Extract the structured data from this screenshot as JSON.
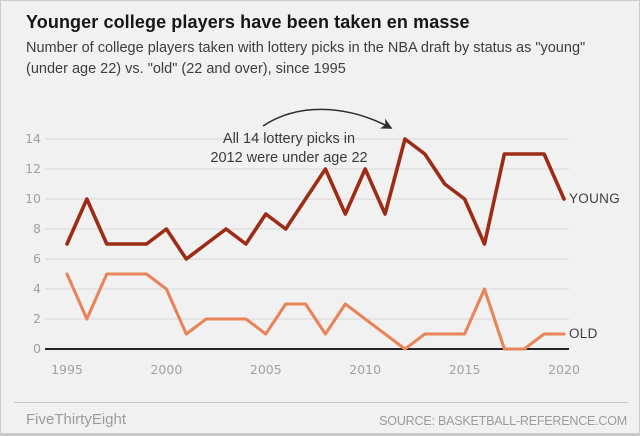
{
  "header": {
    "title": "Younger college players have been taken en masse",
    "subtitle": "Number of college players taken with lottery picks in the NBA draft by status as \"young\" (under age 22) vs. \"old\" (22 and over), since 1995"
  },
  "annotation": {
    "line1": "All 14 lottery picks in",
    "line2": "2012 were under age 22"
  },
  "chart_data": {
    "type": "line",
    "title": "Younger college players have been taken en masse",
    "xlabel": "",
    "ylabel": "",
    "x": [
      1995,
      1996,
      1997,
      1998,
      1999,
      2000,
      2001,
      2002,
      2003,
      2004,
      2005,
      2006,
      2007,
      2008,
      2009,
      2010,
      2011,
      2012,
      2013,
      2014,
      2015,
      2016,
      2017,
      2018,
      2019,
      2020
    ],
    "series": [
      {
        "name": "YOUNG",
        "color": "#9c2c15",
        "values": [
          7,
          10,
          7,
          7,
          7,
          8,
          6,
          7,
          8,
          7,
          9,
          8,
          10,
          12,
          9,
          12,
          9,
          14,
          13,
          11,
          10,
          7,
          13,
          13,
          13,
          10
        ]
      },
      {
        "name": "OLD",
        "color": "#e8845a",
        "values": [
          5,
          2,
          5,
          5,
          5,
          4,
          1,
          2,
          2,
          2,
          1,
          3,
          3,
          1,
          3,
          2,
          1,
          0,
          1,
          1,
          1,
          4,
          0,
          0,
          1,
          1
        ]
      }
    ],
    "ylim": [
      0,
      14
    ],
    "y_ticks": [
      0,
      2,
      4,
      6,
      8,
      10,
      12,
      14
    ],
    "x_ticks": [
      1995,
      2000,
      2005,
      2010,
      2015,
      2020
    ],
    "grid": true,
    "legend_position": "end-of-line",
    "annotation": "All 14 lottery picks in 2012 were under age 22 (arrow points to YOUNG peak of 14 in 2012)"
  },
  "footer": {
    "brand": "FiveThirtyEight",
    "source": "SOURCE: BASKETBALL-REFERENCE.COM"
  }
}
